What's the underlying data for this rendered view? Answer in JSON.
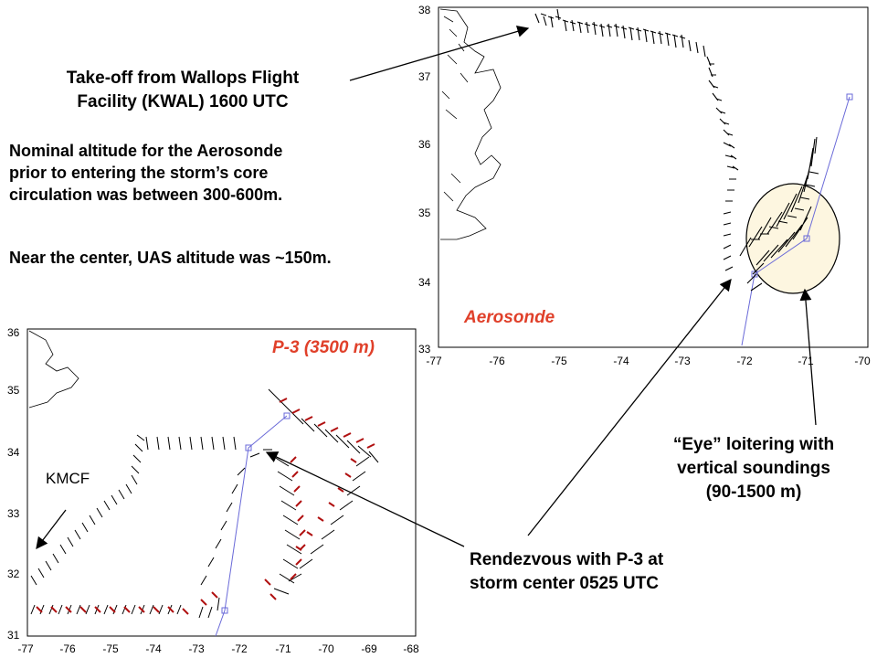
{
  "annotations": {
    "takeoff_line1": "Take-off from Wallops Flight",
    "takeoff_line2": "Facility (KWAL) 1600 UTC",
    "nominal_line1": "Nominal altitude for the Aerosonde",
    "nominal_line2": "prior to entering the storm’s core",
    "nominal_line3": "circulation was between 300-600m.",
    "near_center": "Near the center, UAS altitude was ~150m.",
    "eye_line1": "“Eye” loitering with",
    "eye_line2": "vertical soundings",
    "eye_line3": "(90-1500 m)",
    "rendezvous_line1": "Rendezvous with P-3 at",
    "rendezvous_line2": "storm center 0525 UTC"
  },
  "map_aerosonde": {
    "label": "Aerosonde",
    "label_color": "#e0402a",
    "x_ticks": [
      "-77",
      "-76",
      "-75",
      "-74",
      "-73",
      "-72",
      "-71",
      "-70"
    ],
    "y_ticks": [
      "38",
      "37",
      "36",
      "35",
      "34",
      "33"
    ]
  },
  "map_p3": {
    "label": "P-3 (3500 m)",
    "label_color": "#e0402a",
    "station_label": "KMCF",
    "x_ticks": [
      "-77",
      "-76",
      "-75",
      "-74",
      "-73",
      "-72",
      "-71",
      "-70",
      "-69",
      "-68"
    ],
    "y_ticks": [
      "36",
      "35",
      "34",
      "33",
      "32",
      "31"
    ]
  },
  "colors": {
    "track": "#6a6ad8",
    "barb_red": "#b01010",
    "eye_fill": "#fdf6e0"
  }
}
